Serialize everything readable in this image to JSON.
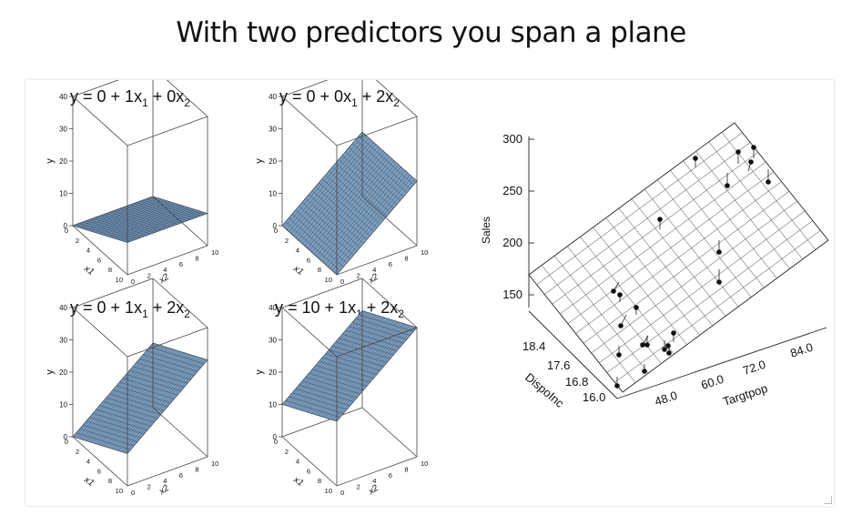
{
  "slide": {
    "title": "With two predictors you span a plane"
  },
  "plane_plots": [
    {
      "equation": {
        "prefix": "y = 0 + 1x",
        "mid": " + 0x",
        "s1": "1",
        "s2": "2"
      },
      "intercept": 0,
      "b1": 1,
      "b2": 0,
      "y_ticks": [
        "0",
        "10",
        "20",
        "30",
        "40"
      ],
      "x1_ticks": [
        "0",
        "2",
        "4",
        "6",
        "8",
        "10"
      ],
      "x2_ticks": [
        "0",
        "2",
        "4",
        "6",
        "8",
        "10"
      ],
      "y_label": "y",
      "x1_label": "x1",
      "x2_label": "x2"
    },
    {
      "equation": {
        "prefix": "y = 0 + 0x",
        "mid": " + 2x",
        "s1": "1",
        "s2": "2"
      },
      "intercept": 0,
      "b1": 0,
      "b2": 2,
      "y_ticks": [
        "0",
        "10",
        "20",
        "30",
        "40"
      ],
      "x1_ticks": [
        "0",
        "2",
        "4",
        "6",
        "8",
        "10"
      ],
      "x2_ticks": [
        "0",
        "2",
        "4",
        "6",
        "8",
        "10"
      ],
      "y_label": "y",
      "x1_label": "x1",
      "x2_label": "x2"
    },
    {
      "equation": {
        "prefix": "y = 0 + 1x",
        "mid": " + 2x",
        "s1": "1",
        "s2": "2"
      },
      "intercept": 0,
      "b1": 1,
      "b2": 2,
      "y_ticks": [
        "0",
        "10",
        "20",
        "30",
        "40"
      ],
      "x1_ticks": [
        "0",
        "2",
        "4",
        "6",
        "8",
        "10"
      ],
      "x2_ticks": [
        "0",
        "2",
        "4",
        "6",
        "8",
        "10"
      ],
      "y_label": "y",
      "x1_label": "x1",
      "x2_label": "x2"
    },
    {
      "equation": {
        "prefix": "y = 10 + 1x",
        "mid": " + 2x",
        "s1": "1",
        "s2": "2"
      },
      "intercept": 10,
      "b1": 1,
      "b2": 2,
      "y_ticks": [
        "0",
        "10",
        "20",
        "30",
        "40"
      ],
      "x1_ticks": [
        "0",
        "2",
        "4",
        "6",
        "8",
        "10"
      ],
      "x2_ticks": [
        "0",
        "2",
        "4",
        "6",
        "8",
        "10"
      ],
      "y_label": "y",
      "x1_label": "x1",
      "x2_label": "x2"
    }
  ],
  "sales_plot": {
    "z_label": "Sales",
    "z_ticks": [
      "150",
      "200",
      "250",
      "300"
    ],
    "dispo_label": "DispoInc",
    "dispo_ticks": [
      "16.0",
      "16.8",
      "17.6",
      "18.4"
    ],
    "targ_label": "Targtpop",
    "targ_ticks": [
      "48.0",
      "60.0",
      "72.0",
      "84.0"
    ]
  },
  "colors": {
    "plane_fill": "#7f9fc0",
    "plane_grid": "#1f2f45",
    "axis": "#444444",
    "ink": "#111111"
  }
}
